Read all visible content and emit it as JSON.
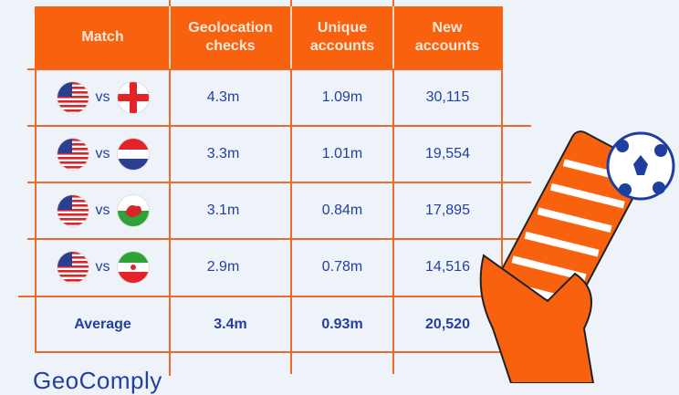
{
  "table": {
    "headers": [
      "Match",
      "Geolocation checks",
      "Unique accounts",
      "New accounts"
    ],
    "rows": [
      {
        "flags": [
          "usa-flag",
          "england-flag"
        ],
        "vs": "vs",
        "geolocation_checks": "4.3m",
        "unique_accounts": "1.09m",
        "new_accounts": "30,115"
      },
      {
        "flags": [
          "usa-flag",
          "netherlands-flag"
        ],
        "vs": "vs",
        "geolocation_checks": "3.3m",
        "unique_accounts": "1.01m",
        "new_accounts": "19,554"
      },
      {
        "flags": [
          "usa-flag",
          "wales-flag"
        ],
        "vs": "vs",
        "geolocation_checks": "3.1m",
        "unique_accounts": "0.84m",
        "new_accounts": "17,895"
      },
      {
        "flags": [
          "usa-flag",
          "iran-flag"
        ],
        "vs": "vs",
        "geolocation_checks": "2.9m",
        "unique_accounts": "0.78m",
        "new_accounts": "14,516"
      }
    ],
    "average": {
      "label": "Average",
      "geolocation_checks": "3.4m",
      "unique_accounts": "0.93m",
      "new_accounts": "20,520"
    }
  },
  "logo": "GeoComply",
  "colors": {
    "accent": "#f8620f",
    "text": "#2340a0",
    "background": "#eef3f9"
  }
}
